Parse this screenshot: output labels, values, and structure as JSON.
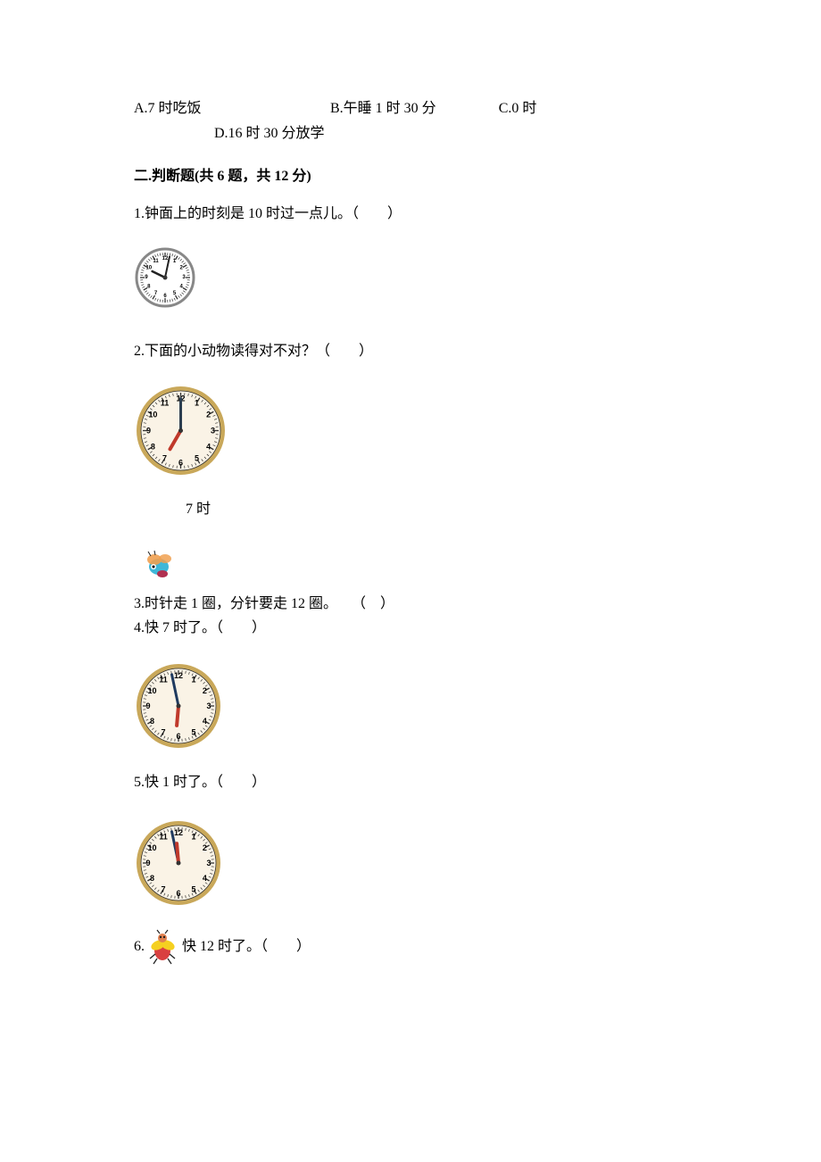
{
  "options": {
    "a": "A.7 时吃饭",
    "b": "B.午睡 1 时 30 分",
    "c": "C.0 时",
    "d": "D.16 时 30 分放学"
  },
  "section2": {
    "title": "二.判断题(共 6 题，共 12 分)"
  },
  "q1": {
    "text": "1.钟面上的时刻是 10 时过一点儿。（　　）",
    "clock": {
      "size": 70,
      "hue_rotate": 0,
      "hour_hand": {
        "angle": -64,
        "length": 16,
        "width": 2.5,
        "color": "#222"
      },
      "minute_hand": {
        "angle": 12,
        "length": 24,
        "width": 2,
        "color": "#222"
      },
      "face": "#fff",
      "rim": "#888",
      "tick": "#333",
      "num_radius": 21,
      "num_font": 6,
      "fancy_rim": true
    }
  },
  "q2": {
    "text": "2.下面的小动物读得对不对？（　　）",
    "clock": {
      "size": 105,
      "hour_hand": {
        "angle": -150,
        "length": 24,
        "width": 4,
        "color": "#c0392b"
      },
      "minute_hand": {
        "angle": 0,
        "length": 36,
        "width": 3,
        "color": "#2c3e50"
      },
      "face": "#faf3e6",
      "rim": "#c9a85a",
      "tick": "#333",
      "num_radius": 36,
      "num_font": 9,
      "fancy_rim": false
    },
    "label": "7 时"
  },
  "q3": {
    "text": "3.时针走 1 圈，分针要走 12 圈。　　（　）"
  },
  "q4": {
    "text": "4.快 7 时了。（　　）",
    "clock": {
      "size": 100,
      "hour_hand": {
        "angle": -175,
        "length": 22,
        "width": 4,
        "color": "#c0392b"
      },
      "minute_hand": {
        "angle": -12,
        "length": 36,
        "width": 3,
        "color": "#1f3a5f"
      },
      "face": "#faf3e6",
      "rim": "#c9a85a",
      "tick": "#333",
      "num_radius": 34,
      "num_font": 9,
      "fancy_rim": false
    }
  },
  "q5": {
    "text": "5.快 1 时了。（　　）",
    "clock": {
      "size": 100,
      "hour_hand": {
        "angle": -5,
        "length": 22,
        "width": 4,
        "color": "#c0392b"
      },
      "minute_hand": {
        "angle": -12,
        "length": 36,
        "width": 3,
        "color": "#1f3a5f"
      },
      "face": "#faf3e6",
      "rim": "#c9a85a",
      "tick": "#333",
      "num_radius": 34,
      "num_font": 9,
      "fancy_rim": false
    }
  },
  "q6": {
    "prefix": "6.",
    "suffix": "快 12 时了。（　　）"
  },
  "clock_numbers": [
    "12",
    "1",
    "2",
    "3",
    "4",
    "5",
    "6",
    "7",
    "8",
    "9",
    "10",
    "11"
  ],
  "bee_colors": {
    "body": "#3fb7d8",
    "wing": "#f0a050",
    "accent": "#b03050"
  },
  "bug_colors": {
    "head": "#e08050",
    "body": "#d94040",
    "wing": "#f5d020",
    "dark": "#222"
  }
}
